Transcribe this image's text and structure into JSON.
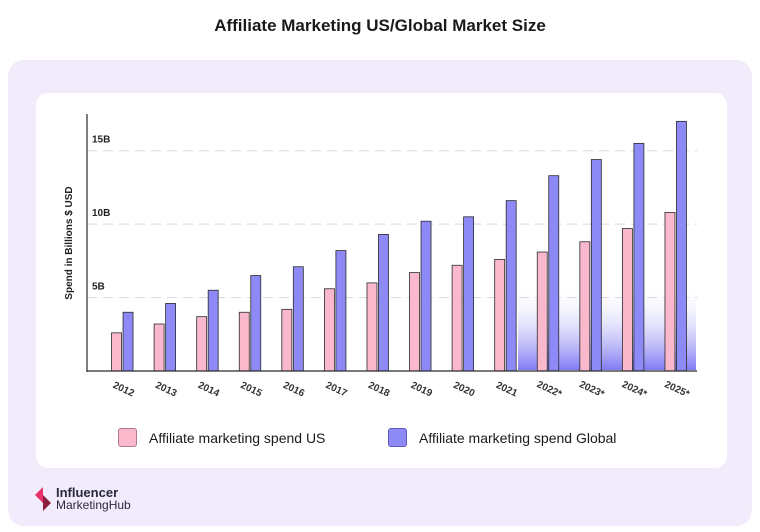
{
  "title": "Affiliate Marketing US/Global Market Size",
  "chart_data": {
    "type": "bar",
    "ylabel": "Spend in Billions $ USD",
    "xlabel": "",
    "ylim": [
      0,
      17.5
    ],
    "yticks": [
      {
        "value": 5,
        "label": "5B"
      },
      {
        "value": 10,
        "label": "10B"
      },
      {
        "value": 15,
        "label": "15B"
      }
    ],
    "categories": [
      "2012",
      "2013",
      "2014",
      "2015",
      "2016",
      "2017",
      "2018",
      "2019",
      "2020",
      "2021",
      "2022*",
      "2023*",
      "2024*",
      "2025*"
    ],
    "series": [
      {
        "name": "Affiliate marketing spend US",
        "color": "#f9b8cb",
        "values": [
          2.6,
          3.2,
          3.7,
          4.0,
          4.2,
          5.6,
          6.0,
          6.7,
          7.2,
          7.6,
          8.1,
          8.8,
          9.7,
          10.8
        ]
      },
      {
        "name": "Affiliate marketing spend Global",
        "color": "#8d89f7",
        "values": [
          4.0,
          4.6,
          5.5,
          6.5,
          7.1,
          8.2,
          9.3,
          10.2,
          10.5,
          11.6,
          13.3,
          14.4,
          15.5,
          17.0
        ]
      }
    ],
    "grid": true,
    "legend": "bottom",
    "projection_highlight": [
      "2022*",
      "2023*",
      "2024*",
      "2025*"
    ]
  },
  "logo": {
    "line1": "Influencer",
    "line2": "MarketingHub"
  },
  "colors": {
    "panel": "#f1ebfb",
    "card": "#ffffff",
    "us": "#f9b8cb",
    "global": "#8d89f7"
  }
}
